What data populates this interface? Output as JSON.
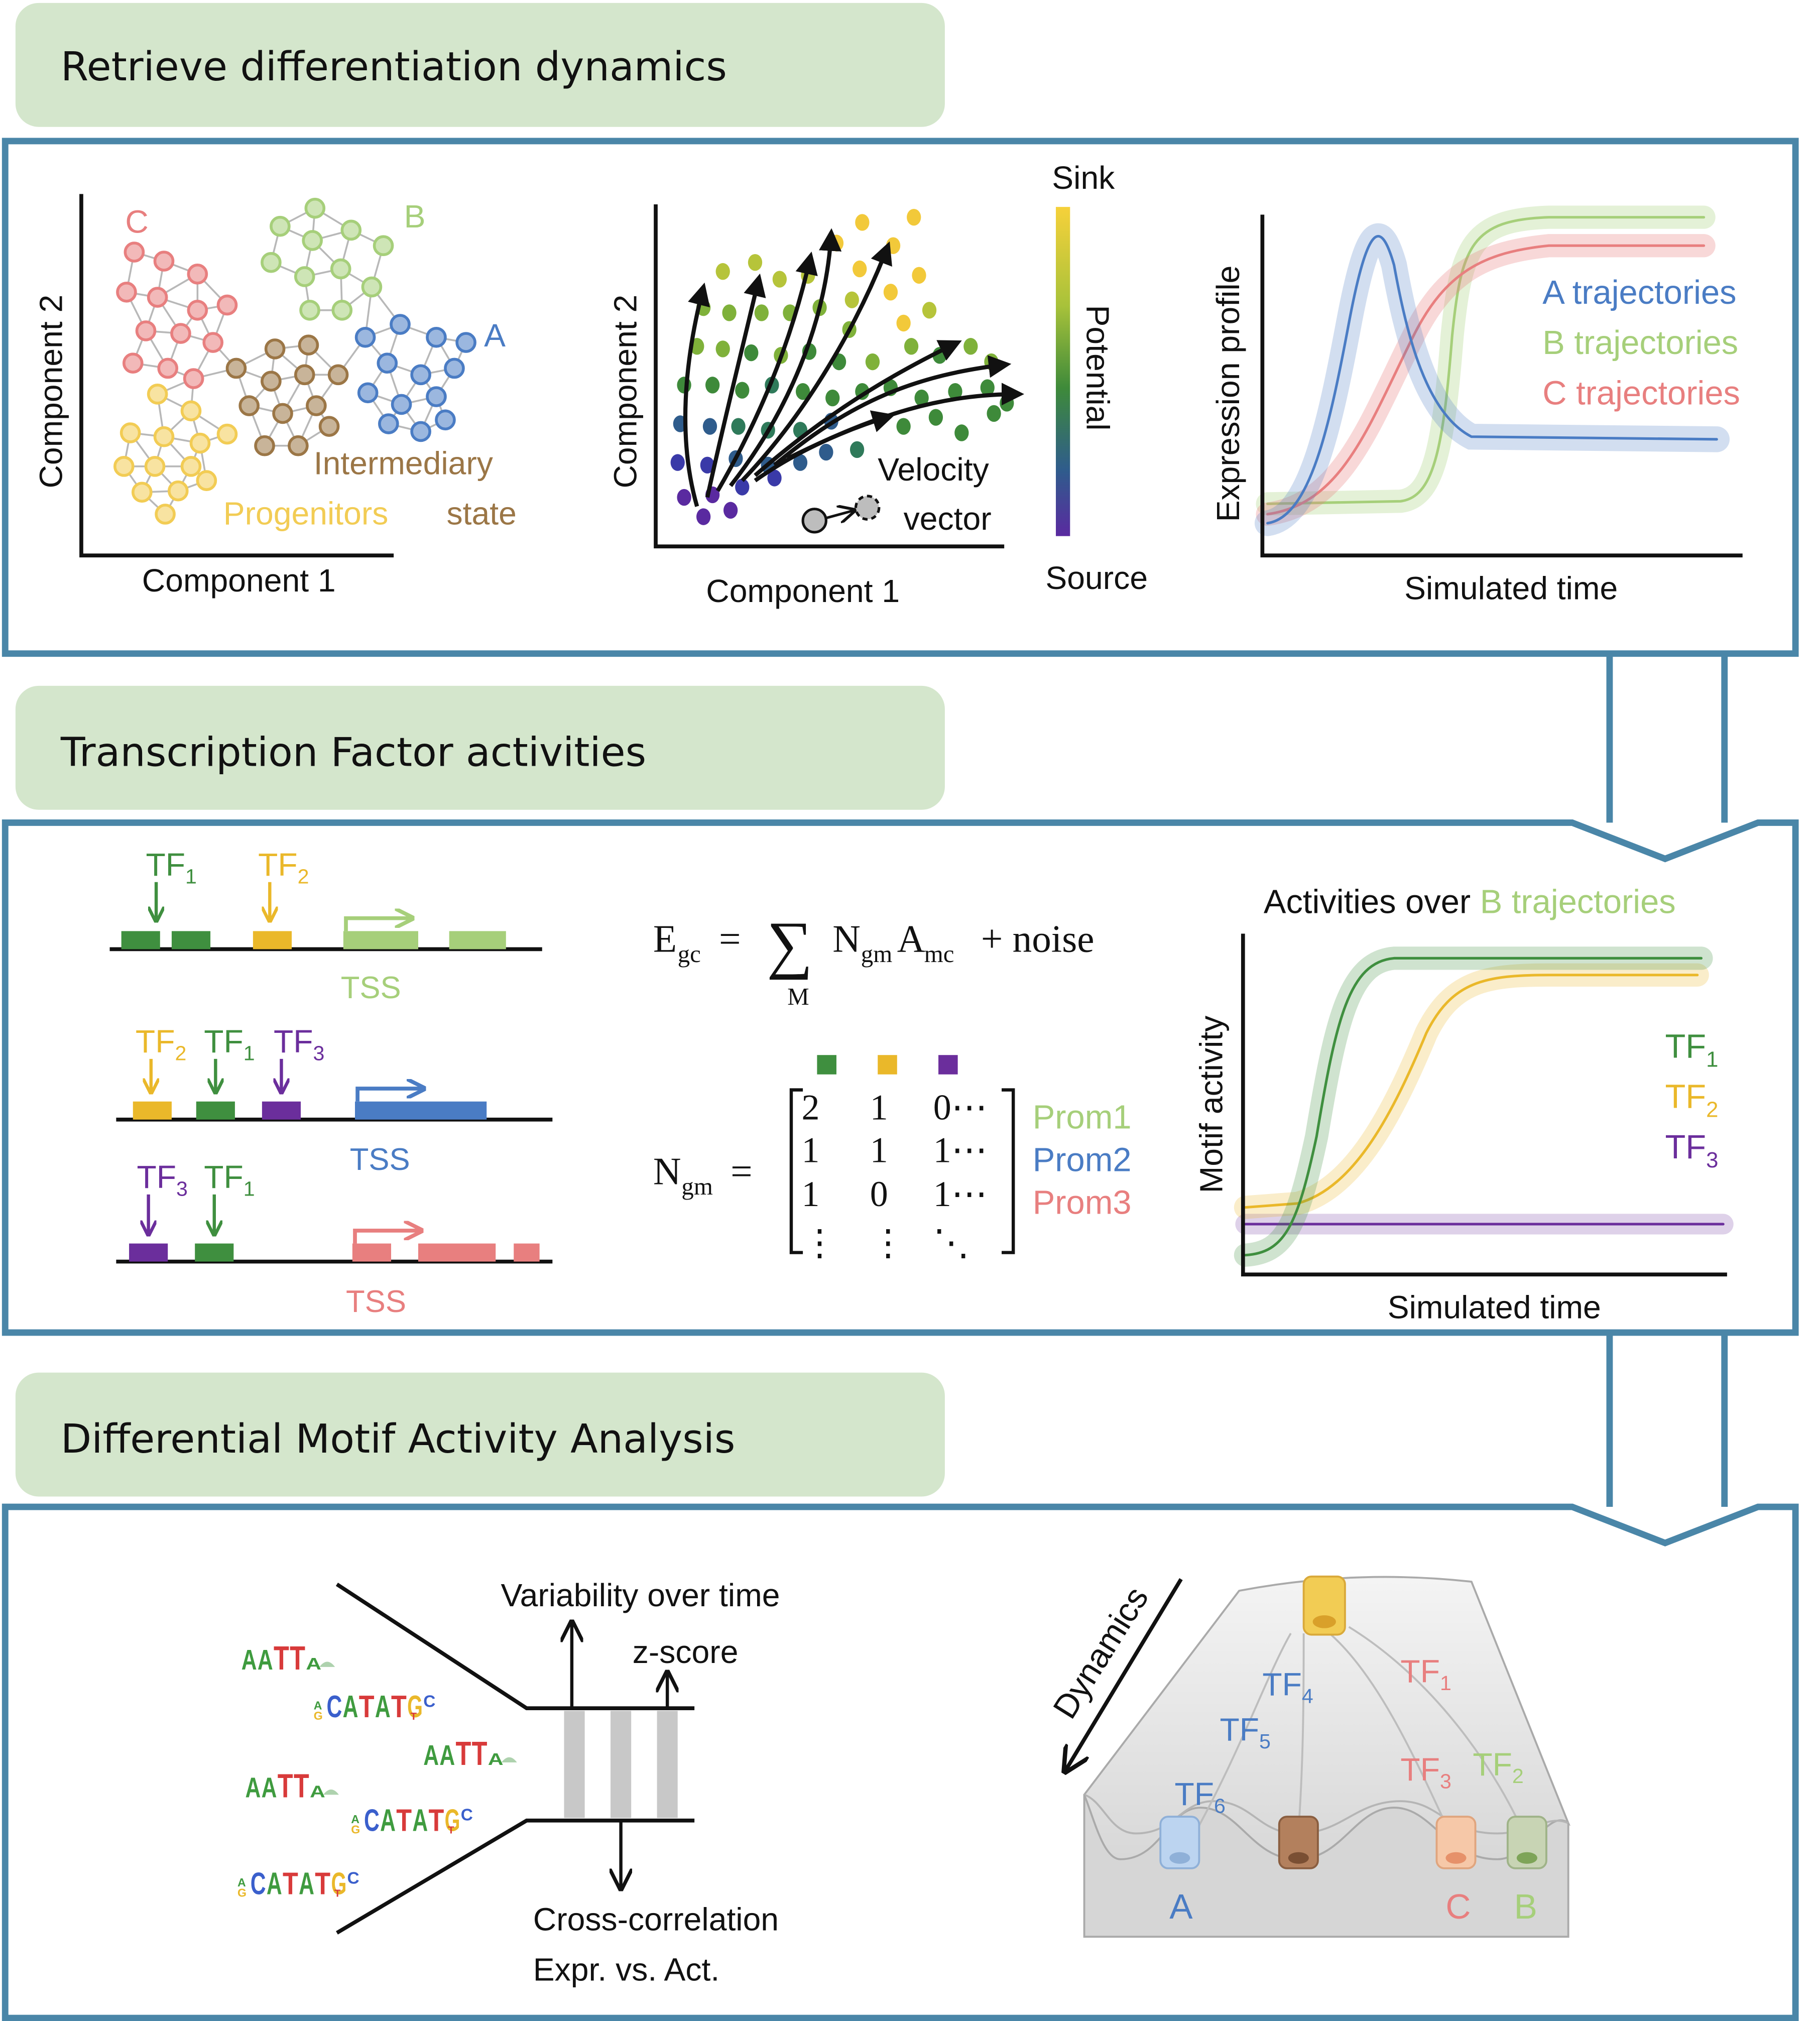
{
  "colors": {
    "frame": "#4a86a8",
    "header_bg": "#d4e6cc",
    "A": "#4a7cc4",
    "B": "#a6cf7a",
    "C": "#e87f7f",
    "progenitor": "#f2cc54",
    "intermediary": "#9b7646",
    "tf1": "#3f8f3f",
    "tf2": "#eab82a",
    "tf3": "#6b2e9c"
  },
  "headers": {
    "h1": "Retrieve differentiation dynamics",
    "h2": "Transcription Factor activities",
    "h3": "Differential Motif Activity Analysis"
  },
  "panel1": {
    "graph": {
      "xlabel": "Component 1",
      "ylabel": "Component 2",
      "label_a": "A",
      "label_b": "B",
      "label_c": "C",
      "label_inter1": "Intermediary",
      "label_inter2": "state",
      "label_prog": "Progenitors"
    },
    "velocity": {
      "xlabel": "Component 1",
      "ylabel": "Component 2",
      "sink": "Sink",
      "source": "Source",
      "potential": "Potential",
      "vel1": "Velocity",
      "vel2": "vector"
    },
    "expr": {
      "ylabel": "Expression profile",
      "xlabel": "Simulated time",
      "leg_a": "A trajectories",
      "leg_b": "B trajectories",
      "leg_c": "C trajectories"
    }
  },
  "panel2": {
    "tss": "TSS",
    "tf_base": "TF",
    "sub1": "1",
    "sub2": "2",
    "sub3": "3",
    "eq": {
      "E": "E",
      "gc": "gc",
      "equals": "=",
      "sigma": "∑",
      "M": "M",
      "N": "N",
      "gm": "gm",
      "A": "A",
      "mc": "mc",
      "noise": "+ noise"
    },
    "matrix": {
      "lhs_N": "N",
      "lhs_gm": "gm",
      "rows": [
        [
          "2",
          "1",
          "0⋯"
        ],
        [
          "1",
          "1",
          "1⋯"
        ],
        [
          "1",
          "0",
          "1⋯"
        ],
        [
          "⋮",
          "⋮",
          "⋱"
        ]
      ],
      "prom1": "Prom1",
      "prom2": "Prom2",
      "prom3": "Prom3"
    },
    "activity": {
      "title_prefix": "Activities over ",
      "title_suffix": "B trajectories",
      "ylabel": "Motif activity",
      "xlabel": "Simulated time"
    }
  },
  "panel3": {
    "variability": "Variability over time",
    "zscore": "z-score",
    "xcorr1": "Cross-correlation",
    "xcorr2": "Expr. vs. Act.",
    "dynamics": "Dynamics",
    "logo_aatta": "AATTA",
    "logo_catatg": "CATATG",
    "logo_pre_a": "A",
    "logo_pre_g": "G",
    "logo_post_t": "T",
    "logo_post_c": "C",
    "tf4": "4",
    "tf5": "5",
    "tf6": "6",
    "label_a": "A",
    "label_b": "B",
    "label_c": "C"
  }
}
